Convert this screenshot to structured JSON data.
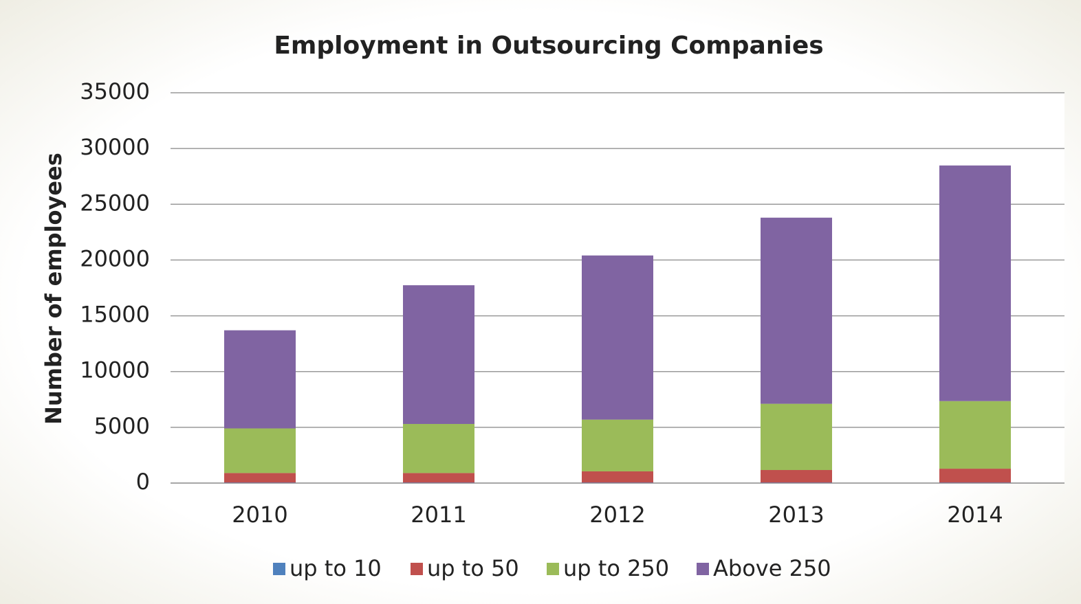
{
  "chart_data": {
    "type": "stacked_bar",
    "title": "Employment in Outsourcing Companies",
    "y_label": "Number of employees",
    "categories": [
      "2010",
      "2011",
      "2012",
      "2013",
      "2014"
    ],
    "series": [
      {
        "name": "up to 10",
        "color": "#4f81bd",
        "values": [
          40,
          40,
          40,
          40,
          40
        ]
      },
      {
        "name": "up to 50",
        "color": "#c0504d",
        "values": [
          860,
          860,
          1010,
          1130,
          1250
        ]
      },
      {
        "name": "up to 250",
        "color": "#9bbb59",
        "values": [
          4000,
          4400,
          4640,
          5940,
          6060
        ]
      },
      {
        "name": "Above 250",
        "color": "#8064a2",
        "values": [
          8800,
          12440,
          14720,
          16690,
          21130
        ]
      }
    ],
    "ylim": [
      0,
      35000
    ],
    "yticks": [
      0,
      5000,
      10000,
      15000,
      20000,
      25000,
      30000,
      35000
    ],
    "grid": true,
    "legend": "bottom"
  }
}
